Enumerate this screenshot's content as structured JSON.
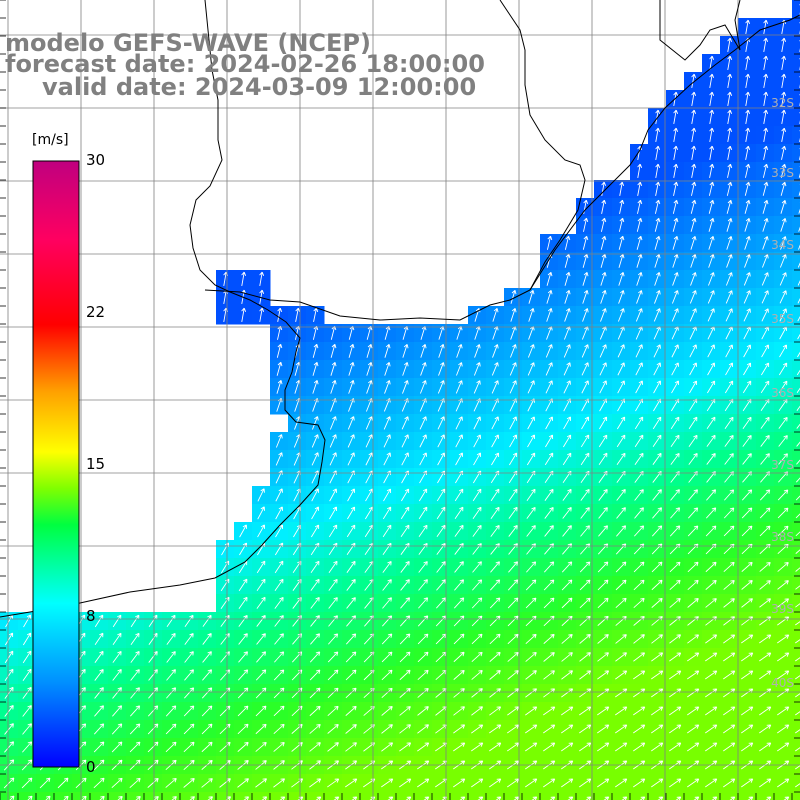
{
  "title": {
    "line1": "modelo GEFS-WAVE (NCEP)",
    "line2": "forecast date: 2024-02-26 18:00:00",
    "line3": "valid date: 2024-03-09 12:00:00"
  },
  "colorbar": {
    "unit": "[m/s]",
    "ticks": [
      "0",
      "8",
      "15",
      "22",
      "30"
    ],
    "min": 0,
    "max": 30,
    "colors": [
      "#0000ff",
      "#00a0ff",
      "#00ffff",
      "#00ff40",
      "#40e000",
      "#ffff00",
      "#ff8000",
      "#ff0000",
      "#ff0060",
      "#c0007f"
    ]
  },
  "map": {
    "lat_labels": [
      "32S",
      "33S",
      "34S",
      "35S",
      "36S",
      "37S",
      "38S",
      "39S",
      "40S"
    ],
    "land_color": "#ffffff",
    "grid_color": "#808080",
    "coast_color": "#000000",
    "arrow_color": "#ffffff"
  }
}
